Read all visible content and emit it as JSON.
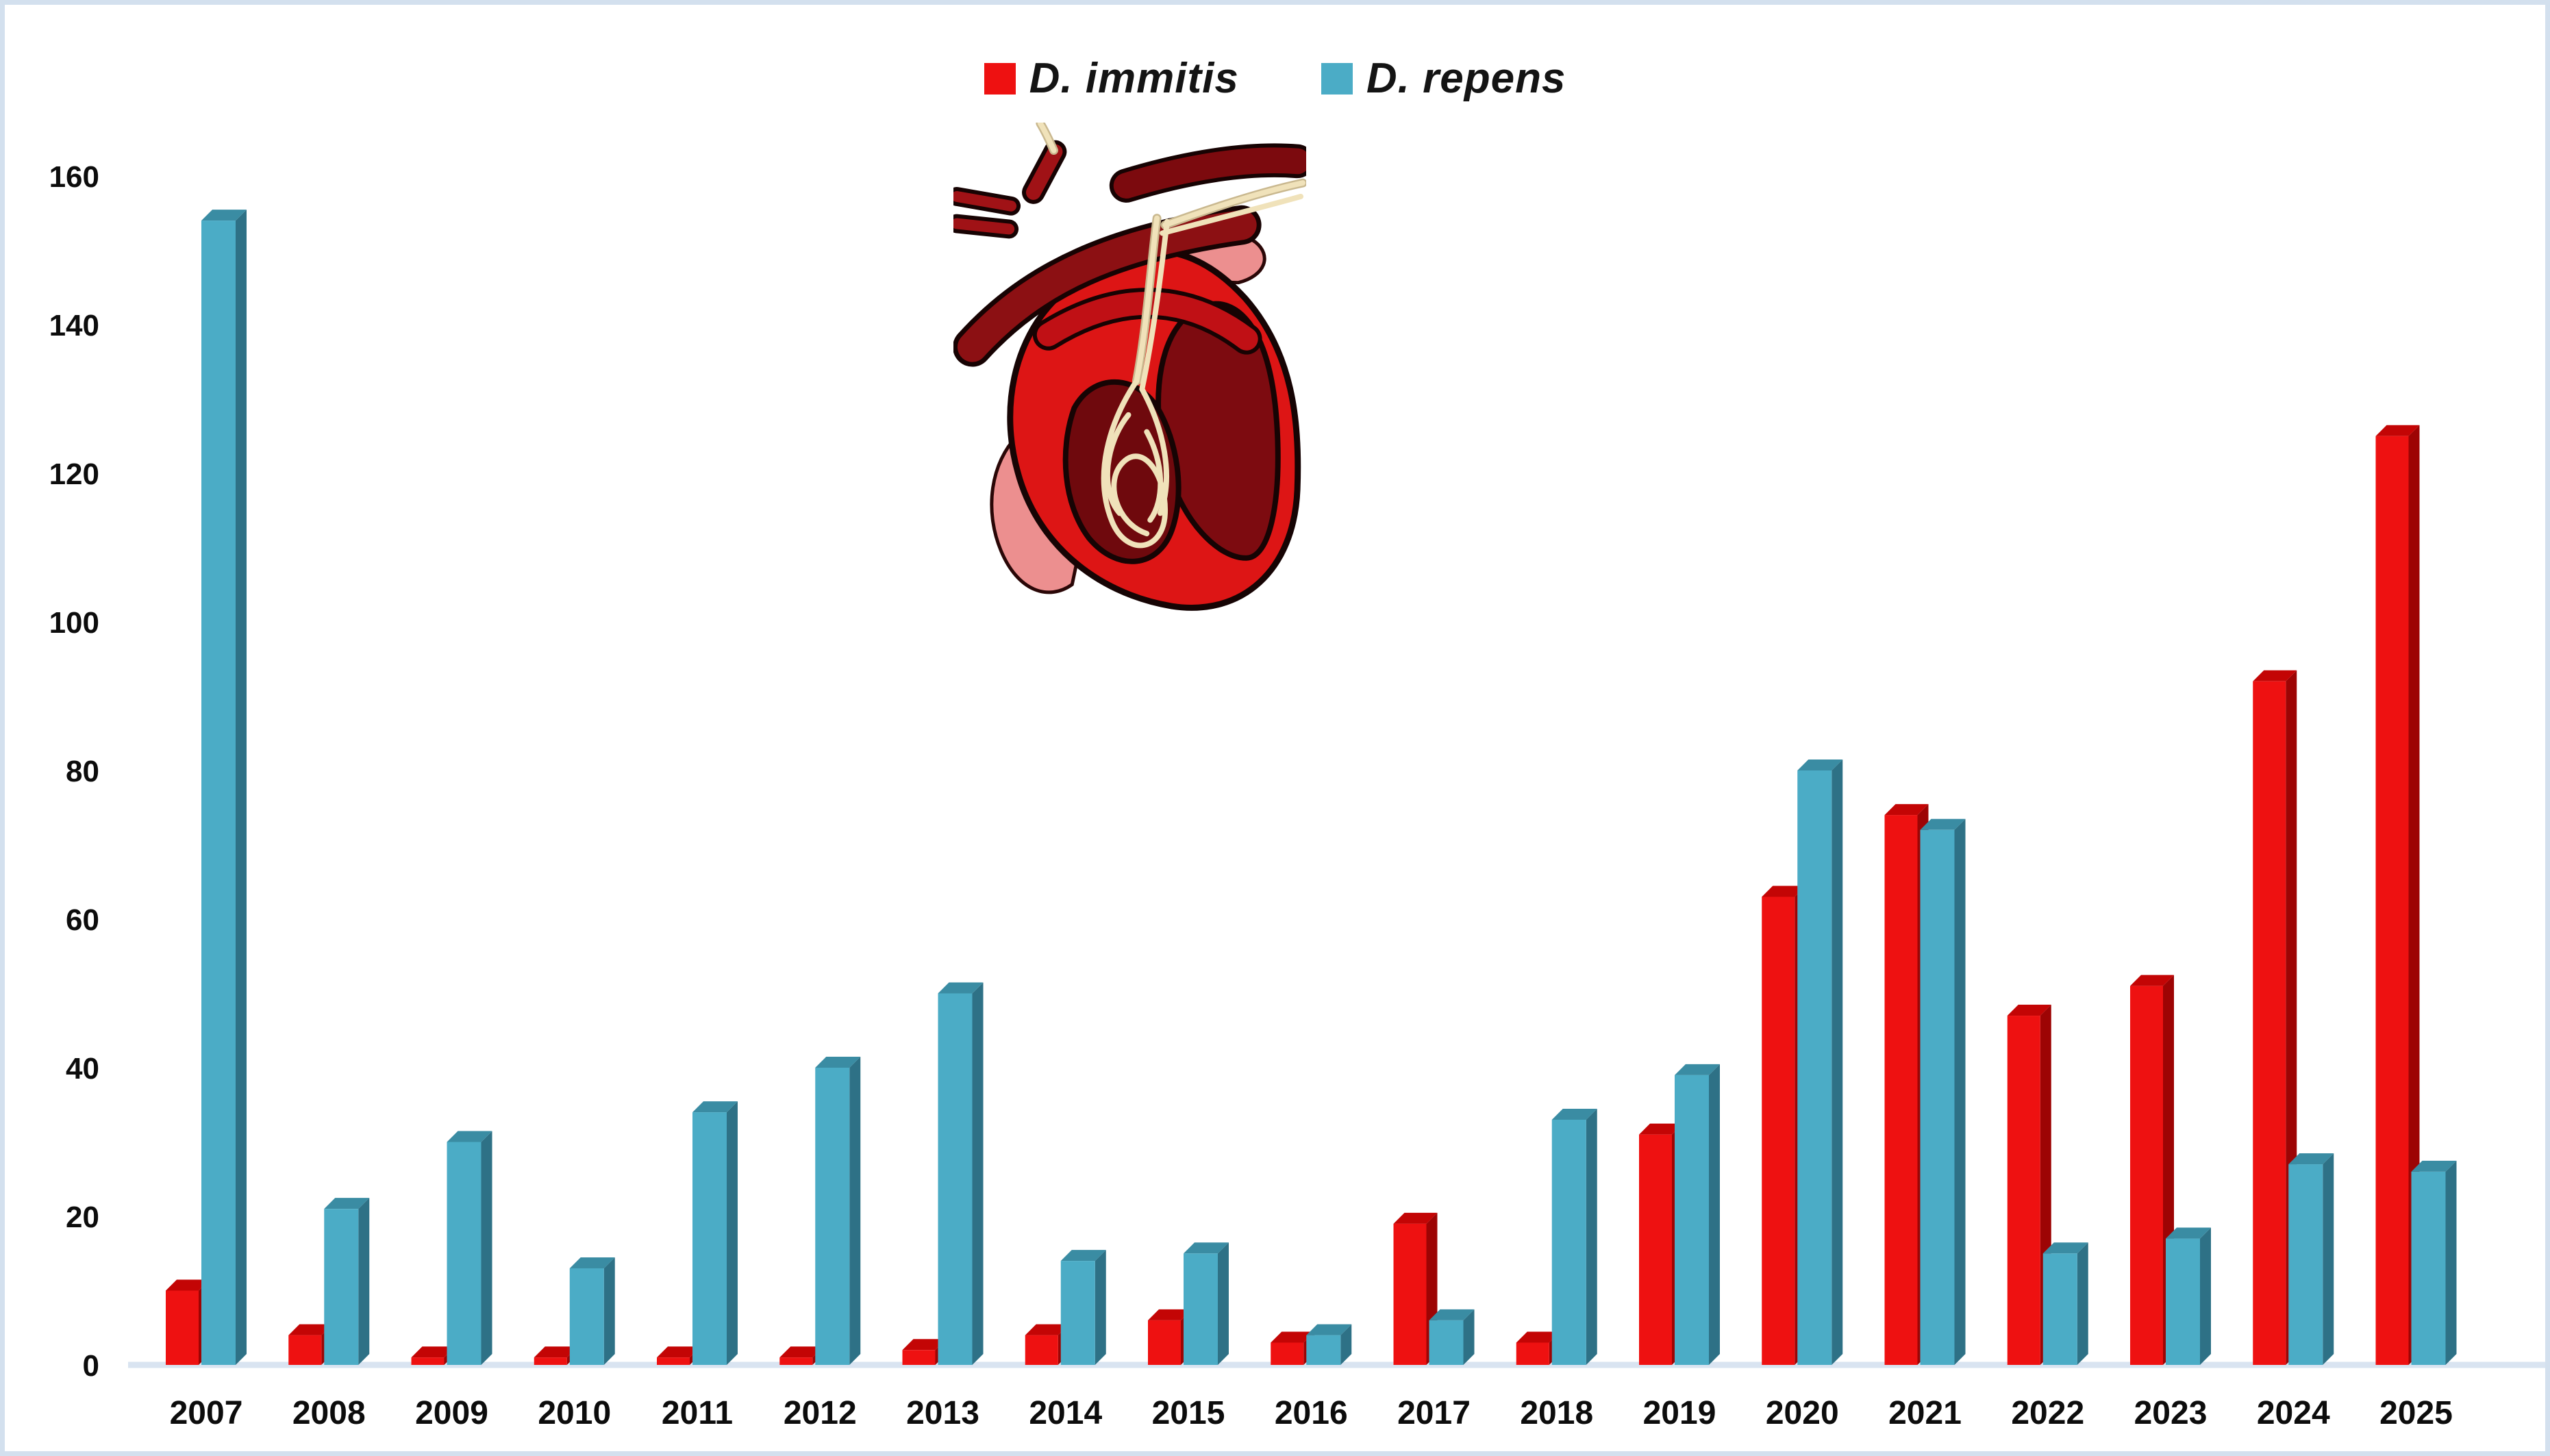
{
  "page": {
    "background": "#ffffff",
    "border_color": "#d3e0ee"
  },
  "chart_data": {
    "type": "bar",
    "title": "",
    "xlabel": "",
    "ylabel": "",
    "categories": [
      "2007",
      "2008",
      "2009",
      "2010",
      "2011",
      "2012",
      "2013",
      "2014",
      "2015",
      "2016",
      "2017",
      "2018",
      "2019",
      "2020",
      "2021",
      "2022",
      "2023",
      "2024",
      "2025"
    ],
    "series": [
      {
        "name": "D. immitis",
        "values": [
          10,
          4,
          1,
          1,
          1,
          1,
          2,
          4,
          6,
          3,
          19,
          3,
          31,
          63,
          74,
          47,
          51,
          92,
          125
        ],
        "color": "#ee1111",
        "color_top": "#c30505",
        "color_side": "#9d0404"
      },
      {
        "name": "D. repens",
        "values": [
          154,
          21,
          30,
          13,
          34,
          40,
          50,
          14,
          15,
          4,
          6,
          33,
          39,
          80,
          72,
          15,
          17,
          27,
          26
        ],
        "color": "#4bacc6",
        "color_top": "#3a8ca3",
        "color_side": "#2e7186"
      }
    ],
    "ylim": [
      0,
      160
    ],
    "yticks": [
      0,
      20,
      40,
      60,
      80,
      100,
      120,
      140,
      160
    ],
    "grid": false,
    "legend_position": "top-center",
    "bar_style": "3d-bevel",
    "axis_line_color": "#d9e4f1",
    "annotation": "cartoon heart cross-section with Dirofilaria worms"
  }
}
